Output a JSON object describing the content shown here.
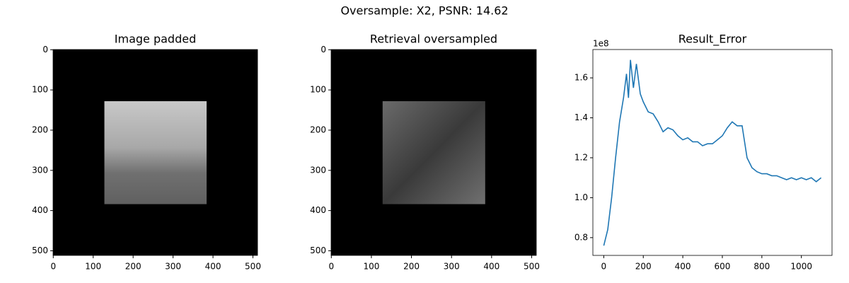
{
  "title": "Oversample: X2, PSNR: 14.62",
  "chart_data": [
    {
      "type": "image",
      "title": "Image padded",
      "xlim": [
        -0.5,
        511.5
      ],
      "ylim": [
        511.5,
        -0.5
      ],
      "xticks": [
        0,
        100,
        200,
        300,
        400,
        500
      ],
      "yticks": [
        0,
        100,
        200,
        300,
        400,
        500
      ]
    },
    {
      "type": "image",
      "title": "Retrieval oversampled",
      "xlim": [
        -0.5,
        511.5
      ],
      "ylim": [
        511.5,
        -0.5
      ],
      "xticks": [
        0,
        100,
        200,
        300,
        400,
        500
      ],
      "yticks": [
        0,
        100,
        200,
        300,
        400,
        500
      ]
    },
    {
      "type": "line",
      "title": "Result_Error",
      "offset_label": "1e8",
      "color": "#1f77b4",
      "x": [
        0,
        20,
        40,
        60,
        80,
        100,
        115,
        125,
        135,
        150,
        165,
        185,
        200,
        225,
        250,
        275,
        300,
        325,
        350,
        375,
        400,
        425,
        450,
        475,
        500,
        525,
        550,
        575,
        600,
        625,
        650,
        675,
        700,
        725,
        750,
        775,
        800,
        825,
        850,
        875,
        900,
        925,
        950,
        975,
        1000,
        1025,
        1050,
        1075,
        1100
      ],
      "values": [
        0.76,
        0.84,
        1.0,
        1.2,
        1.38,
        1.5,
        1.62,
        1.5,
        1.69,
        1.55,
        1.67,
        1.52,
        1.48,
        1.43,
        1.42,
        1.38,
        1.33,
        1.35,
        1.34,
        1.31,
        1.29,
        1.3,
        1.28,
        1.28,
        1.26,
        1.27,
        1.27,
        1.29,
        1.31,
        1.35,
        1.38,
        1.36,
        1.36,
        1.2,
        1.15,
        1.13,
        1.12,
        1.12,
        1.11,
        1.11,
        1.1,
        1.09,
        1.1,
        1.09,
        1.1,
        1.09,
        1.1,
        1.08,
        1.1
      ],
      "xlim": [
        -55,
        1155
      ],
      "ylim": [
        0.711,
        1.742
      ],
      "xticks": [
        0,
        200,
        400,
        600,
        800,
        1000
      ],
      "yticks": [
        0.8,
        {
          "value": 1.0,
          "label": "1.0"
        },
        1.2,
        1.4,
        1.6
      ]
    }
  ]
}
